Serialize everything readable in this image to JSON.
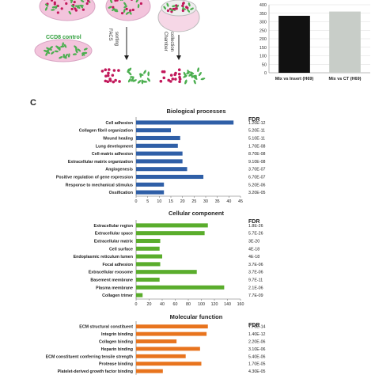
{
  "panel_letter": "C",
  "top_panel": {
    "control_label": "CCD8 control",
    "facs_label": "FACS",
    "sorting_label": "sorting",
    "chamber_label": "Chamber",
    "collection_label": "collection",
    "colors": {
      "red_cells": "#c2185b",
      "green_cells": "#4caf50",
      "dish": "#f3c4dc",
      "control_text": "#2e9e3a"
    }
  },
  "chart_data": [
    {
      "type": "bar",
      "orientation": "vertical",
      "categories": [
        "Mix vs Insert (H69)",
        "Mix vs CT (H69)"
      ],
      "values": [
        335,
        360
      ],
      "colors": [
        "#111111",
        "#c8cdc8"
      ],
      "ylim": [
        0,
        400
      ],
      "yticks": [
        0,
        50,
        100,
        150,
        200,
        250,
        300,
        350,
        400
      ],
      "grid": true
    },
    {
      "type": "bar",
      "orientation": "horizontal",
      "title": "Biological processes",
      "color": "#2f5fa7",
      "categories": [
        "Cell adhesion",
        "Collagen fibril organization",
        "Wound healing",
        "Lung development",
        "Cell-matrix adhesion",
        "Extracellular matrix organization",
        "Angiogenesis",
        "Positive regulation of gene expression",
        "Response to mechanical stimulus",
        "Ossification"
      ],
      "values": [
        42,
        15,
        19,
        18,
        20,
        20,
        22,
        29,
        12,
        12
      ],
      "fdr_header": "FDR",
      "fdr": [
        "1.20E-12",
        "5.20E-11",
        "5.10E-11",
        "1.70E-08",
        "8.70E-08",
        "9.10E-08",
        "3.70E-07",
        "6.70E-07",
        "5.20E-06",
        "3.20E-05"
      ],
      "xlim": [
        0,
        45
      ],
      "xticks": [
        0,
        5,
        10,
        15,
        20,
        25,
        30,
        35,
        40,
        45
      ]
    },
    {
      "type": "bar",
      "orientation": "horizontal",
      "title": "Cellular component",
      "color": "#5aad2c",
      "categories": [
        "Extracellular region",
        "Extracellular space",
        "Extracellular matrix",
        "Cell surface",
        "Endoplasmic reticulum lumen",
        "Focal adhesion",
        "Extracellular exosome",
        "Basement membrane",
        "Plasma membrane",
        "Collagen trimer"
      ],
      "values": [
        110,
        105,
        37,
        36,
        40,
        37,
        93,
        36,
        135,
        10
      ],
      "fdr_header": "FDR",
      "fdr": [
        "1.8E-26",
        "5.7E-26",
        "3E-20",
        "4E-18",
        "4E-18",
        "3.7E-06",
        "3.7E-06",
        "9.7E-11",
        "2.1E-06",
        "7.7E-09"
      ],
      "xlim": [
        0,
        160
      ],
      "xticks": [
        0,
        20,
        40,
        60,
        80,
        100,
        120,
        140,
        160
      ]
    },
    {
      "type": "bar",
      "orientation": "horizontal",
      "title": "Molecular function",
      "color": "#e8741e",
      "categories": [
        "ECM structural constituent",
        "Integrin binding",
        "Collagen binding",
        "Heparin binding",
        "ECM constituent conferring tensile strength",
        "Protease binding",
        "Platelet-derived growth factor binding"
      ],
      "values": [
        110,
        108,
        62,
        98,
        76,
        100,
        41
      ],
      "fdr_header": "FDR",
      "fdr": [
        "7.70E-14",
        "1.40E-12",
        "2.20E-06",
        "3.10E-06",
        "5.40E-06",
        "1.70E-05",
        "4.30E-05"
      ],
      "xlim": [
        0,
        160
      ]
    }
  ]
}
